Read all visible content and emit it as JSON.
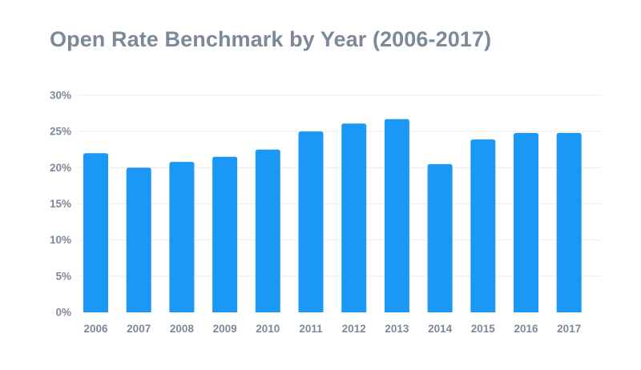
{
  "chart_data": {
    "type": "bar",
    "title": "Open Rate Benchmark by Year (2006-2017)",
    "xlabel": "",
    "ylabel": "",
    "categories": [
      "2006",
      "2007",
      "2008",
      "2009",
      "2010",
      "2011",
      "2012",
      "2013",
      "2014",
      "2015",
      "2016",
      "2017"
    ],
    "values": [
      22.0,
      20.0,
      20.8,
      21.5,
      22.5,
      25.0,
      26.1,
      26.7,
      20.5,
      23.9,
      24.8,
      24.8
    ],
    "ylim": [
      0,
      30
    ],
    "yticks": [
      "0%",
      "5%",
      "10%",
      "15%",
      "20%",
      "25%",
      "30%"
    ],
    "ytick_values": [
      0,
      5,
      10,
      15,
      20,
      25,
      30
    ],
    "grid": true,
    "legend": "none",
    "bar_color": "#1b98f5",
    "grid_color": "#ececec",
    "text_color": "#7d8899"
  }
}
